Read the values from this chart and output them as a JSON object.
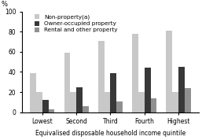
{
  "categories": [
    "Lowest",
    "Second",
    "Third",
    "Fourth",
    "Highest"
  ],
  "series": {
    "Non-property(a)_total": [
      39,
      59,
      71,
      78,
      81
    ],
    "Non-property(a)_sub": [
      20,
      20,
      20,
      20,
      20
    ],
    "Owner-occupied property": [
      12,
      25,
      39,
      44,
      45
    ],
    "Rental and other property": [
      3,
      6,
      11,
      14,
      24
    ]
  },
  "colors": {
    "Non-property(a)_total": "#c8c8c8",
    "Non-property(a)_sub": "#c8c8c8",
    "Owner-occupied property": "#383838",
    "Rental and other property": "#909090"
  },
  "legend_labels": {
    "Non-property(a)_total": "Non-property(a)",
    "Owner-occupied property": "Owner-occupied property",
    "Rental and other property": "Rental and other property"
  },
  "ylabel": "%",
  "xlabel": "Equivalised disposable household income quintile",
  "ylim": [
    0,
    100
  ],
  "yticks": [
    0,
    20,
    40,
    60,
    80,
    100
  ],
  "bar_width": 0.18,
  "legend_fontsize": 5.2,
  "axis_fontsize": 5.5,
  "tick_fontsize": 5.5,
  "ylabel_fontsize": 6
}
